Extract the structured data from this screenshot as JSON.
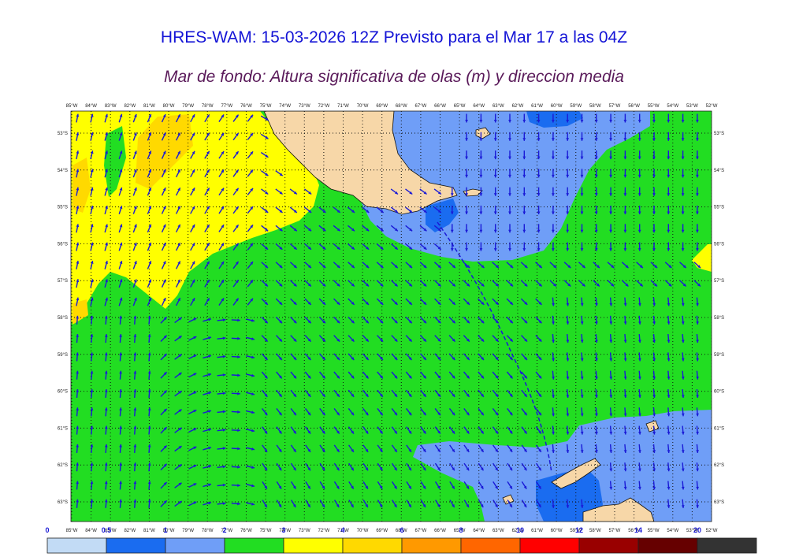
{
  "header": {
    "title": "HRES-WAM: 15-03-2026 12Z Previsto para el Mar 17 a las 04Z",
    "subtitle": "Mar de fondo: Altura significativa de olas (m) y direccion media"
  },
  "map": {
    "lon_labels": [
      "85°W",
      "84°W",
      "83°W",
      "82°W",
      "81°W",
      "80°W",
      "79°W",
      "78°W",
      "77°W",
      "76°W",
      "75°W",
      "74°W",
      "73°W",
      "72°W",
      "71°W",
      "70°W",
      "69°W",
      "68°W",
      "67°W",
      "66°W",
      "65°W",
      "64°W",
      "63°W",
      "62°W",
      "61°W",
      "60°W",
      "59°W",
      "58°W",
      "57°W",
      "56°W",
      "55°W",
      "54°W",
      "53°W",
      "52°W"
    ],
    "lat_labels": [
      "53°S",
      "54°S",
      "55°S",
      "56°S",
      "57°S",
      "58°S",
      "59°S",
      "60°S",
      "61°S",
      "62°S",
      "63°S"
    ],
    "colors": {
      "land": "#f7d7a8",
      "ice_white": "#ffffff",
      "wave_0_05": "#c2dbf5",
      "wave_05_1": "#1a6cf0",
      "wave_1_2": "#6f9ef7",
      "wave_2_3": "#22dd22",
      "wave_3_4": "#ffff00",
      "wave_4_6": "#ffd900",
      "wave_6_8": "#ff9900",
      "wave_8_10": "#ff6600",
      "wave_10_12": "#ff0000",
      "wave_12_14": "#990000",
      "wave_14_20": "#660000",
      "wave_20_plus": "#333333",
      "arrow": "#1a1ad6"
    }
  },
  "scale": {
    "labels": [
      "0",
      "0.5",
      "1",
      "2",
      "3",
      "4",
      "6",
      "8",
      "10",
      "12",
      "14",
      "20"
    ],
    "colors": [
      "#c2dbf5",
      "#1a6cf0",
      "#6f9ef7",
      "#22dd22",
      "#ffff00",
      "#ffd900",
      "#ff9900",
      "#ff6600",
      "#ff0000",
      "#990000",
      "#660000",
      "#333333"
    ]
  }
}
